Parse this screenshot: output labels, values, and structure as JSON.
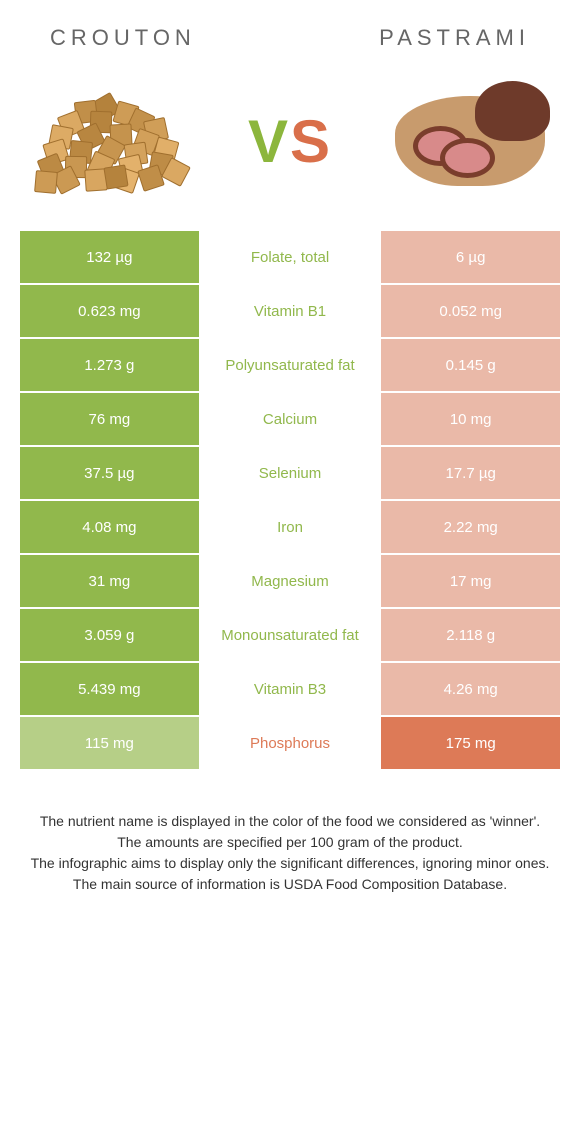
{
  "foods": {
    "left": {
      "name": "Crouton",
      "color": "#91b84c"
    },
    "right": {
      "name": "Pastrami",
      "color": "#dd7a57"
    }
  },
  "colors": {
    "left_bg": "#91b84c",
    "right_bg": "#dd7a57",
    "mid_left_text": "#91b84c",
    "mid_right_text": "#dd7a57",
    "left_dim": "#b6cf87",
    "right_dim": "#eab9a8"
  },
  "rows": [
    {
      "label": "Folate, total",
      "left": "132 µg",
      "right": "6 µg",
      "winner": "left"
    },
    {
      "label": "Vitamin B1",
      "left": "0.623 mg",
      "right": "0.052 mg",
      "winner": "left"
    },
    {
      "label": "Polyunsaturated fat",
      "left": "1.273 g",
      "right": "0.145 g",
      "winner": "left"
    },
    {
      "label": "Calcium",
      "left": "76 mg",
      "right": "10 mg",
      "winner": "left"
    },
    {
      "label": "Selenium",
      "left": "37.5 µg",
      "right": "17.7 µg",
      "winner": "left"
    },
    {
      "label": "Iron",
      "left": "4.08 mg",
      "right": "2.22 mg",
      "winner": "left"
    },
    {
      "label": "Magnesium",
      "left": "31 mg",
      "right": "17 mg",
      "winner": "left"
    },
    {
      "label": "Monounsaturated fat",
      "left": "3.059 g",
      "right": "2.118 g",
      "winner": "left"
    },
    {
      "label": "Vitamin B3",
      "left": "5.439 mg",
      "right": "4.26 mg",
      "winner": "left"
    },
    {
      "label": "Phosphorus",
      "left": "115 mg",
      "right": "175 mg",
      "winner": "right"
    }
  ],
  "footer": [
    "The nutrient name is displayed in the color of the food we considered as 'winner'.",
    "The amounts are specified per 100 gram of the product.",
    "The infographic aims to display only the significant differences, ignoring minor ones.",
    "The main source of information is USDA Food Composition Database."
  ]
}
